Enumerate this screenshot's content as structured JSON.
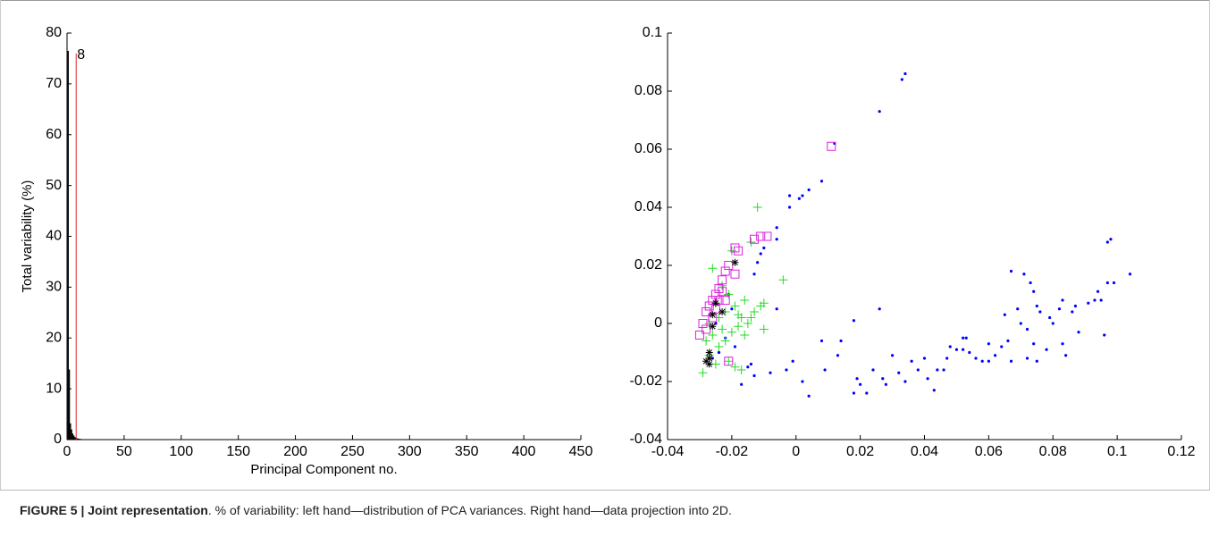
{
  "chart_data": [
    {
      "type": "bar",
      "xlabel": "Principal Component no.",
      "ylabel": "Total variability (%)",
      "x": [
        1,
        2,
        3,
        4,
        5,
        6,
        7,
        8,
        9,
        10,
        11,
        12,
        13,
        14,
        15,
        16,
        17,
        18,
        19,
        20,
        22,
        24,
        26,
        28,
        30
      ],
      "values": [
        76.5,
        13.8,
        3.2,
        2.0,
        1.2,
        0.8,
        0.5,
        0.35,
        0.25,
        0.2,
        0.15,
        0.12,
        0.1,
        0.08,
        0.06,
        0.05,
        0.04,
        0.03,
        0.02,
        0.02,
        0.02,
        0.01,
        0.01,
        0.01,
        0.01
      ],
      "color": "#000000",
      "marker": {
        "x": 8,
        "top": 76,
        "label": "8",
        "color": "#d62728"
      },
      "xlim": [
        0,
        450
      ],
      "xticks": [
        0,
        50,
        100,
        150,
        200,
        250,
        300,
        350,
        400,
        450
      ],
      "ylim": [
        0,
        80
      ],
      "yticks": [
        0,
        10,
        20,
        30,
        40,
        50,
        60,
        70,
        80
      ]
    },
    {
      "type": "scatter",
      "xlim": [
        -0.04,
        0.12
      ],
      "xticks": [
        -0.04,
        -0.02,
        0,
        0.02,
        0.04,
        0.06,
        0.08,
        0.1,
        0.12
      ],
      "ylim": [
        -0.04,
        0.1
      ],
      "yticks": [
        -0.04,
        -0.02,
        0,
        0.02,
        0.04,
        0.06,
        0.08,
        0.1
      ],
      "series": [
        {
          "marker": "dot",
          "color": "#0000ff",
          "x": [
            0.034,
            0.033,
            0.026,
            0.008,
            0.004,
            0.002,
            0.001,
            -0.002,
            -0.002,
            -0.006,
            -0.006,
            -0.01,
            -0.011,
            -0.012,
            -0.013,
            0.012,
            -0.006,
            0.097,
            0.098,
            0.104,
            0.099,
            0.097,
            0.094,
            0.093,
            0.095,
            0.091,
            0.087,
            0.086,
            0.083,
            0.082,
            0.08,
            0.079,
            0.076,
            0.074,
            0.073,
            0.071,
            0.067,
            0.069,
            0.065,
            0.07,
            0.072,
            0.074,
            0.078,
            0.083,
            0.084,
            0.075,
            0.072,
            0.067,
            0.066,
            0.064,
            0.062,
            0.06,
            0.058,
            0.056,
            0.054,
            0.053,
            0.052,
            0.05,
            0.048,
            0.047,
            0.046,
            0.044,
            0.043,
            0.041,
            0.04,
            0.038,
            0.036,
            0.034,
            0.032,
            0.03,
            0.028,
            0.027,
            0.024,
            0.022,
            0.02,
            0.019,
            0.018,
            0.014,
            0.013,
            0.018,
            0.026,
            0.008,
            0.009,
            0.004,
            0.002,
            -0.001,
            -0.003,
            -0.008,
            -0.013,
            -0.015,
            -0.017,
            -0.014,
            0.052,
            0.06,
            0.075,
            0.088,
            0.096,
            -0.02,
            -0.022,
            -0.024,
            -0.026,
            -0.025,
            -0.021,
            -0.019
          ],
          "y": [
            0.086,
            0.084,
            0.073,
            0.049,
            0.046,
            0.044,
            0.043,
            0.044,
            0.04,
            0.033,
            0.029,
            0.026,
            0.024,
            0.021,
            0.017,
            0.062,
            0.005,
            0.028,
            0.029,
            0.017,
            0.014,
            0.014,
            0.011,
            0.008,
            0.008,
            0.007,
            0.006,
            0.004,
            0.008,
            0.005,
            0.0,
            0.002,
            0.004,
            0.011,
            0.014,
            0.017,
            0.018,
            0.005,
            0.003,
            0.0,
            -0.002,
            -0.007,
            -0.009,
            -0.007,
            -0.011,
            -0.013,
            -0.012,
            -0.013,
            -0.006,
            -0.008,
            -0.011,
            -0.013,
            -0.013,
            -0.012,
            -0.01,
            -0.005,
            -0.009,
            -0.009,
            -0.008,
            -0.012,
            -0.016,
            -0.016,
            -0.023,
            -0.019,
            -0.012,
            -0.016,
            -0.013,
            -0.02,
            -0.017,
            -0.011,
            -0.021,
            -0.019,
            -0.016,
            -0.024,
            -0.021,
            -0.019,
            -0.024,
            -0.006,
            -0.011,
            0.001,
            0.005,
            -0.006,
            -0.016,
            -0.025,
            -0.02,
            -0.013,
            -0.016,
            -0.017,
            -0.018,
            -0.015,
            -0.021,
            -0.014,
            -0.005,
            -0.007,
            0.006,
            -0.003,
            -0.004,
            0.005,
            -0.005,
            -0.01,
            -0.012,
            0.0,
            0.01,
            -0.008
          ]
        },
        {
          "marker": "plus",
          "color": "#22dd22",
          "x": [
            -0.012,
            -0.004,
            -0.01,
            -0.011,
            -0.013,
            -0.014,
            -0.016,
            -0.018,
            -0.02,
            -0.021,
            -0.022,
            -0.023,
            -0.024,
            -0.025,
            -0.026,
            -0.027,
            -0.028,
            -0.029,
            -0.027,
            -0.025,
            -0.024,
            -0.022,
            -0.02,
            -0.018,
            -0.016,
            -0.015,
            -0.017,
            -0.019,
            -0.021,
            -0.01,
            -0.014,
            -0.026,
            -0.023,
            -0.019,
            -0.017
          ],
          "y": [
            0.04,
            0.015,
            0.007,
            0.006,
            0.004,
            0.028,
            0.008,
            0.003,
            0.025,
            0.01,
            0.004,
            -0.002,
            0.002,
            0.007,
            0.019,
            0.0,
            -0.006,
            -0.017,
            -0.011,
            -0.014,
            -0.008,
            -0.006,
            -0.003,
            -0.001,
            -0.004,
            0.0,
            0.002,
            -0.015,
            -0.013,
            -0.002,
            0.002,
            -0.004,
            0.013,
            0.006,
            -0.016
          ]
        },
        {
          "marker": "square",
          "color": "#dd22dd",
          "x": [
            0.011,
            -0.011,
            -0.009,
            -0.013,
            -0.018,
            -0.019,
            -0.021,
            -0.022,
            -0.023,
            -0.024,
            -0.025,
            -0.026,
            -0.027,
            -0.028,
            -0.029,
            -0.03,
            -0.024,
            -0.025,
            -0.026,
            -0.023,
            -0.019,
            -0.021,
            -0.022,
            -0.028
          ],
          "y": [
            0.061,
            0.03,
            0.03,
            0.029,
            0.025,
            0.026,
            0.02,
            0.018,
            0.015,
            0.012,
            0.01,
            0.008,
            0.006,
            0.004,
            0.0,
            -0.004,
            0.008,
            0.005,
            0.002,
            0.011,
            0.017,
            -0.013,
            0.008,
            -0.002
          ]
        },
        {
          "marker": "asterisk",
          "color": "#000000",
          "x": [
            -0.019,
            -0.025,
            -0.026,
            -0.026,
            -0.027,
            -0.027,
            -0.027,
            -0.028,
            -0.023
          ],
          "y": [
            0.021,
            0.007,
            0.003,
            -0.001,
            -0.01,
            -0.012,
            -0.014,
            -0.013,
            0.004
          ]
        }
      ]
    }
  ],
  "caption": {
    "label": "FIGURE 5 |",
    "title": "Joint representation",
    "text": ". % of variability: left hand—distribution of PCA variances. Right hand—data projection into 2D."
  }
}
